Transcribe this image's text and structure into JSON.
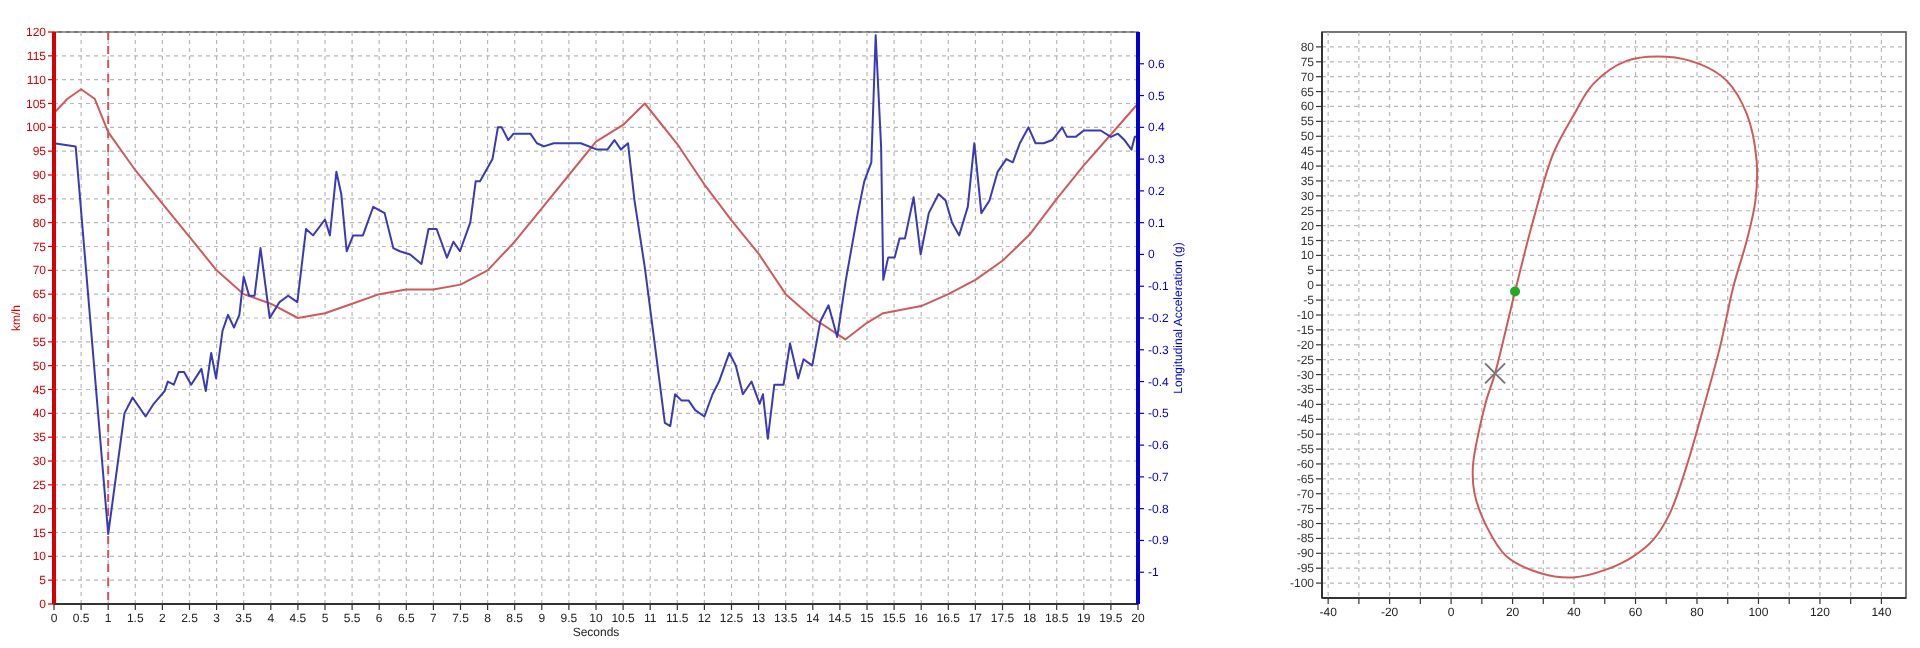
{
  "chart_data": [
    {
      "type": "line",
      "xlabel": "Seconds",
      "ylabel": "km/h",
      "y2label": "Longitudinal Acceleration (g)",
      "xlim": [
        0,
        20
      ],
      "ylim": [
        0,
        120
      ],
      "y2lim": [
        -1.1,
        0.7
      ],
      "xticks": [
        0,
        0.5,
        1,
        1.5,
        2,
        2.5,
        3,
        3.5,
        4,
        4.5,
        5,
        5.5,
        6,
        6.5,
        7,
        7.5,
        8,
        8.5,
        9,
        9.5,
        10,
        10.5,
        11,
        11.5,
        12,
        12.5,
        13,
        13.5,
        14,
        14.5,
        15,
        15.5,
        16,
        16.5,
        17,
        17.5,
        18,
        18.5,
        19,
        19.5,
        20
      ],
      "yticks": [
        0,
        5,
        10,
        15,
        20,
        25,
        30,
        35,
        40,
        45,
        50,
        55,
        60,
        65,
        70,
        75,
        80,
        85,
        90,
        95,
        100,
        105,
        110,
        115,
        120
      ],
      "y2ticks": [
        -1,
        -0.9,
        -0.8,
        -0.7,
        -0.6,
        -0.5,
        -0.4,
        -0.3,
        -0.2,
        -0.1,
        0,
        0.1,
        0.2,
        0.3,
        0.4,
        0.5,
        0.6
      ],
      "grid": true,
      "ref_lines": [
        {
          "axis": "x",
          "value": 1,
          "color": "#cc5555",
          "line_style": "dashed"
        }
      ],
      "series": [
        {
          "color": "#d05a5a",
          "x": [
            0,
            0.25,
            0.5,
            0.75,
            1,
            1.5,
            2,
            2.5,
            3,
            3.5,
            4,
            4.5,
            5,
            5.5,
            6,
            6.5,
            7,
            7.5,
            8,
            8.5,
            9,
            9.5,
            10,
            10.5,
            10.9,
            11.5,
            12,
            12.5,
            13,
            13.5,
            14,
            14.6,
            15,
            15.3,
            16,
            16.5,
            17,
            17.5,
            18,
            18.5,
            19,
            19.5,
            20
          ],
          "values": [
            103,
            106,
            108,
            106,
            99,
            91,
            84,
            77,
            70,
            65,
            63,
            60,
            61,
            63,
            65,
            66,
            66,
            67,
            70,
            76,
            83,
            90,
            97,
            100.5,
            105,
            96.5,
            88,
            80.5,
            73.5,
            65,
            60,
            55.5,
            59,
            61,
            62.5,
            65,
            68,
            72,
            77.5,
            85,
            92,
            98.5,
            105
          ]
        },
        {
          "color": "#3a3ab8",
          "axis": "y2",
          "x": [
            0,
            0.4,
            1,
            1.3,
            1.45,
            1.69,
            1.84,
            2.04,
            2.1,
            2.21,
            2.3,
            2.4,
            2.53,
            2.72,
            2.8,
            2.9,
            2.99,
            3.11,
            3.21,
            3.32,
            3.42,
            3.5,
            3.6,
            3.7,
            3.81,
            3.98,
            4.16,
            4.32,
            4.49,
            4.65,
            4.78,
            5,
            5.09,
            5.21,
            5.3,
            5.4,
            5.52,
            5.7,
            5.89,
            6.1,
            6.26,
            6.38,
            6.57,
            6.78,
            6.91,
            7.06,
            7.25,
            7.37,
            7.49,
            7.68,
            7.78,
            7.86,
            8.09,
            8.19,
            8.26,
            8.38,
            8.48,
            8.67,
            8.79,
            8.91,
            9.04,
            9.22,
            9.47,
            9.72,
            10.02,
            10.21,
            10.34,
            10.46,
            10.59,
            10.71,
            10.9,
            11.09,
            11.27,
            11.37,
            11.46,
            11.58,
            11.71,
            11.83,
            12,
            12.15,
            12.27,
            12.46,
            12.58,
            12.71,
            12.87,
            13.02,
            13.08,
            13.17,
            13.29,
            13.46,
            13.58,
            13.73,
            13.83,
            13.99,
            14.14,
            14.29,
            14.45,
            14.61,
            14.83,
            14.95,
            15.08,
            15.16,
            15.26,
            15.3,
            15.39,
            15.51,
            15.6,
            15.7,
            15.86,
            15.99,
            16.14,
            16.32,
            16.45,
            16.57,
            16.7,
            16.86,
            16.98,
            17.11,
            17.26,
            17.41,
            17.57,
            17.69,
            17.82,
            17.98,
            18.11,
            18.26,
            18.42,
            18.6,
            18.69,
            18.85,
            19,
            19.31,
            19.5,
            19.63,
            19.75,
            19.88,
            19.94,
            20
          ],
          "values": [
            0.35,
            0.34,
            -0.88,
            -0.5,
            -0.45,
            -0.51,
            -0.47,
            -0.43,
            -0.4,
            -0.41,
            -0.37,
            -0.37,
            -0.41,
            -0.36,
            -0.43,
            -0.31,
            -0.39,
            -0.24,
            -0.19,
            -0.23,
            -0.19,
            -0.07,
            -0.13,
            -0.13,
            0.02,
            -0.2,
            -0.15,
            -0.13,
            -0.15,
            0.08,
            0.06,
            0.11,
            0.06,
            0.26,
            0.19,
            0.01,
            0.06,
            0.06,
            0.15,
            0.13,
            0.02,
            0.01,
            0,
            -0.03,
            0.08,
            0.08,
            -0.01,
            0.04,
            0.01,
            0.1,
            0.23,
            0.23,
            0.3,
            0.4,
            0.4,
            0.36,
            0.38,
            0.38,
            0.38,
            0.35,
            0.34,
            0.35,
            0.35,
            0.35,
            0.33,
            0.33,
            0.36,
            0.33,
            0.35,
            0.17,
            -0.04,
            -0.29,
            -0.53,
            -0.54,
            -0.44,
            -0.46,
            -0.46,
            -0.49,
            -0.51,
            -0.44,
            -0.4,
            -0.31,
            -0.35,
            -0.44,
            -0.4,
            -0.47,
            -0.44,
            -0.58,
            -0.41,
            -0.41,
            -0.28,
            -0.39,
            -0.33,
            -0.35,
            -0.21,
            -0.16,
            -0.26,
            -0.08,
            0.13,
            0.23,
            0.29,
            0.69,
            0.34,
            -0.08,
            -0.01,
            -0.01,
            0.05,
            0.05,
            0.18,
            0,
            0.13,
            0.19,
            0.17,
            0.1,
            0.06,
            0.15,
            0.35,
            0.13,
            0.17,
            0.26,
            0.3,
            0.29,
            0.35,
            0.4,
            0.35,
            0.35,
            0.36,
            0.4,
            0.37,
            0.37,
            0.39,
            0.39,
            0.37,
            0.38,
            0.36,
            0.33,
            0.37,
            0.37
          ]
        }
      ]
    },
    {
      "type": "scatter",
      "xlim": [
        -42,
        148
      ],
      "ylim": [
        -105,
        85
      ],
      "xticks": [
        -40,
        {
          "value": -30,
          "label": null
        },
        -20,
        {
          "value": -10,
          "label": null
        },
        0,
        {
          "value": 10,
          "label": null
        },
        20,
        {
          "value": 30,
          "label": null
        },
        40,
        {
          "value": 50,
          "label": null
        },
        60,
        {
          "value": 70,
          "label": null
        },
        80,
        {
          "value": 90,
          "label": null
        },
        100,
        {
          "value": 110,
          "label": null
        },
        120,
        {
          "value": 130,
          "label": null
        },
        140
      ],
      "yticks": [
        -100,
        -95,
        -90,
        -85,
        -80,
        -75,
        -70,
        -65,
        -60,
        -55,
        -50,
        -45,
        -40,
        -35,
        -30,
        -25,
        -20,
        -15,
        -10,
        -5,
        0,
        5,
        10,
        15,
        20,
        25,
        30,
        35,
        40,
        45,
        50,
        55,
        60,
        65,
        70,
        75,
        80
      ],
      "grid": true,
      "series": [
        {
          "color": "#22aa22",
          "marker": "circle",
          "x": [
            20.8
          ],
          "values": [
            -2.1
          ]
        },
        {
          "color": "#777777",
          "marker": "cross",
          "x": [
            14.3
          ],
          "values": [
            -29.6
          ]
        }
      ]
    }
  ]
}
